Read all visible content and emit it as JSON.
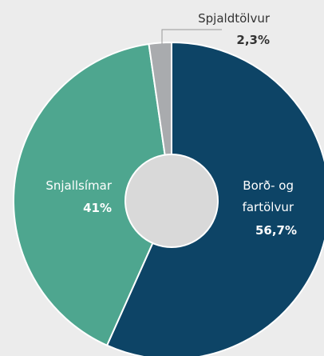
{
  "chart_data": {
    "type": "donut",
    "categories": [
      "Borð- og fartölvur",
      "Snjallsímar",
      "Spjaldtölvur"
    ],
    "values": [
      56.7,
      41,
      2.3
    ],
    "value_labels": [
      "56,7%",
      "41%",
      "2,3%"
    ],
    "colors": [
      "#0d4466",
      "#4ea68f",
      "#a9abae"
    ]
  }
}
